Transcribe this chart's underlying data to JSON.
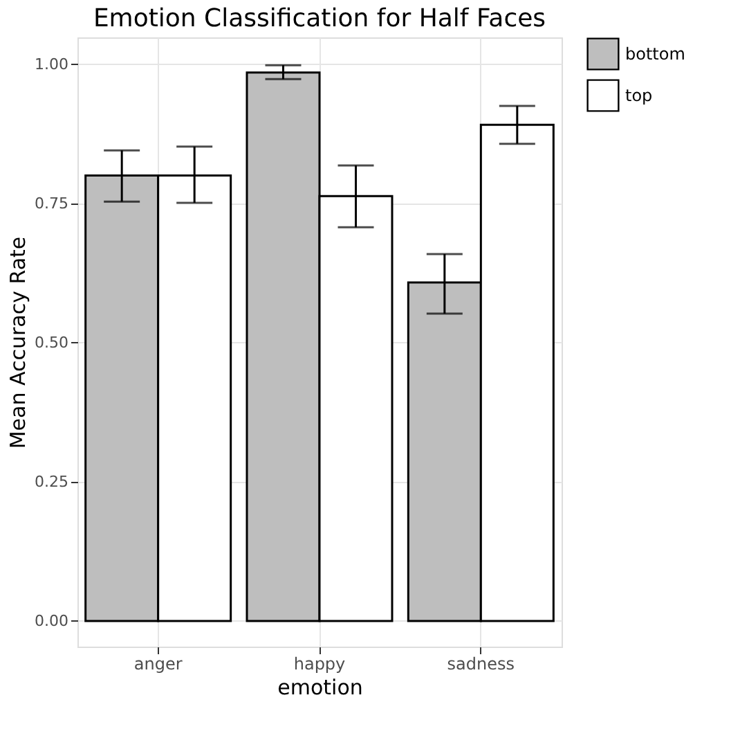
{
  "chart_data": {
    "type": "bar",
    "title": "Emotion Classification for Half Faces",
    "xlabel": "emotion",
    "ylabel": "Mean Accuracy Rate",
    "categories": [
      "anger",
      "happy",
      "sadness"
    ],
    "series": [
      {
        "name": "bottom",
        "color": "#bebebe",
        "values": [
          0.8,
          0.985,
          0.608
        ],
        "errors": [
          [
            0.753,
            0.845
          ],
          [
            0.973,
            0.998
          ],
          [
            0.552,
            0.659
          ]
        ]
      },
      {
        "name": "top",
        "color": "#ffffff",
        "values": [
          0.8,
          0.763,
          0.891
        ],
        "errors": [
          [
            0.751,
            0.852
          ],
          [
            0.707,
            0.818
          ],
          [
            0.857,
            0.925
          ]
        ]
      }
    ],
    "ylim": [
      -0.046,
      1.048
    ],
    "yticks": [
      {
        "value": 0,
        "label": "0.00"
      },
      {
        "value": 0.25,
        "label": "0.25"
      },
      {
        "value": 0.5,
        "label": "0.50"
      },
      {
        "value": 0.75,
        "label": "0.75"
      },
      {
        "value": 1,
        "label": "1.00"
      }
    ],
    "grid": true,
    "legend": "right"
  }
}
